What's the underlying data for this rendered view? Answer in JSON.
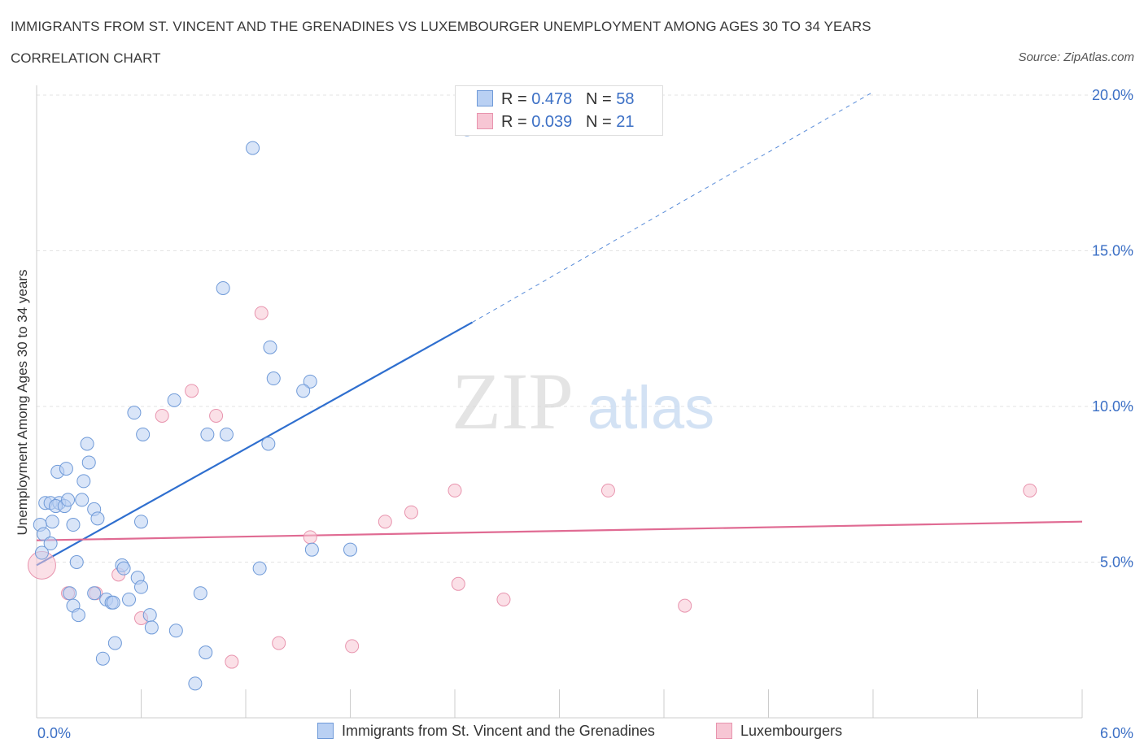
{
  "header": {
    "title": "IMMIGRANTS FROM ST. VINCENT AND THE GRENADINES VS LUXEMBOURGER UNEMPLOYMENT AMONG AGES 30 TO 34 YEARS",
    "subtitle": "CORRELATION CHART",
    "source": "Source: ZipAtlas.com"
  },
  "watermark": {
    "zip": "ZIP",
    "atlas": "atlas"
  },
  "legend": {
    "rows": [
      {
        "r_label": "R =",
        "r_value": "0.478",
        "n_label": "N =",
        "n_value": "58"
      },
      {
        "r_label": "R =",
        "r_value": "0.039",
        "n_label": "N =",
        "n_value": "21"
      }
    ]
  },
  "chart_data": {
    "type": "scatter",
    "title": "IMMIGRANTS FROM ST. VINCENT AND THE GRENADINES VS LUXEMBOURGER UNEMPLOYMENT AMONG AGES 30 TO 34 YEARS",
    "xlabel": "",
    "ylabel": "Unemployment Among Ages 30 to 34 years",
    "xlim": [
      0,
      6
    ],
    "ylim": [
      0,
      20
    ],
    "x_tick_labels": [
      "0.0%",
      "6.0%"
    ],
    "y_ticks": [
      5,
      10,
      15,
      20
    ],
    "y_tick_labels": [
      "5.0%",
      "10.0%",
      "15.0%",
      "20.0%"
    ],
    "grid": true,
    "legend_position": "bottom",
    "colors": {
      "series1_fill": "#b9d0f3",
      "series1_stroke": "#6f9ad8",
      "series1_line": "#2f6fcf",
      "series2_fill": "#f7c6d4",
      "series2_stroke": "#e894ae",
      "series2_line": "#e06b93",
      "tick_text": "#3b6fc5"
    },
    "series": [
      {
        "name": "Immigrants from St. Vincent and the Grenadines",
        "r": 0.478,
        "n": 58,
        "trend": {
          "x": [
            0,
            2.5
          ],
          "y": [
            4.9,
            12.7
          ],
          "dashed_to": [
            4.8,
            20.1
          ]
        },
        "points": [
          [
            2.47,
            18.9
          ],
          [
            1.24,
            18.3
          ],
          [
            1.07,
            13.8
          ],
          [
            1.34,
            11.9
          ],
          [
            1.36,
            10.9
          ],
          [
            1.57,
            10.8
          ],
          [
            1.53,
            10.5
          ],
          [
            0.79,
            10.2
          ],
          [
            0.56,
            9.8
          ],
          [
            0.61,
            9.1
          ],
          [
            0.98,
            9.1
          ],
          [
            1.09,
            9.1
          ],
          [
            1.33,
            8.8
          ],
          [
            0.29,
            8.8
          ],
          [
            0.3,
            8.2
          ],
          [
            0.12,
            7.9
          ],
          [
            0.17,
            8.0
          ],
          [
            0.27,
            7.6
          ],
          [
            0.05,
            6.9
          ],
          [
            0.08,
            6.9
          ],
          [
            0.13,
            6.9
          ],
          [
            0.11,
            6.8
          ],
          [
            0.16,
            6.8
          ],
          [
            0.18,
            7.0
          ],
          [
            0.26,
            7.0
          ],
          [
            0.33,
            6.7
          ],
          [
            0.35,
            6.4
          ],
          [
            0.09,
            6.3
          ],
          [
            0.21,
            6.2
          ],
          [
            0.02,
            6.2
          ],
          [
            0.04,
            5.9
          ],
          [
            0.6,
            6.3
          ],
          [
            0.08,
            5.6
          ],
          [
            0.03,
            5.3
          ],
          [
            0.23,
            5.0
          ],
          [
            1.8,
            5.4
          ],
          [
            1.58,
            5.4
          ],
          [
            0.49,
            4.9
          ],
          [
            0.5,
            4.8
          ],
          [
            1.28,
            4.8
          ],
          [
            0.58,
            4.5
          ],
          [
            0.6,
            4.2
          ],
          [
            0.19,
            4.0
          ],
          [
            0.33,
            4.0
          ],
          [
            0.21,
            3.6
          ],
          [
            0.24,
            3.3
          ],
          [
            0.4,
            3.8
          ],
          [
            0.43,
            3.7
          ],
          [
            0.53,
            3.8
          ],
          [
            0.44,
            3.7
          ],
          [
            0.65,
            3.3
          ],
          [
            0.66,
            2.9
          ],
          [
            0.8,
            2.8
          ],
          [
            0.94,
            4.0
          ],
          [
            0.45,
            2.4
          ],
          [
            0.38,
            1.9
          ],
          [
            0.97,
            2.1
          ],
          [
            0.91,
            1.1
          ]
        ]
      },
      {
        "name": "Luxembourgers",
        "r": 0.039,
        "n": 21,
        "trend": {
          "x": [
            0,
            6
          ],
          "y": [
            5.7,
            6.3
          ]
        },
        "points": [
          [
            0.03,
            4.9
          ],
          [
            1.29,
            13.0
          ],
          [
            0.89,
            10.5
          ],
          [
            0.72,
            9.7
          ],
          [
            1.03,
            9.7
          ],
          [
            2.4,
            7.3
          ],
          [
            3.28,
            7.3
          ],
          [
            5.7,
            7.3
          ],
          [
            2.15,
            6.6
          ],
          [
            2.0,
            6.3
          ],
          [
            1.57,
            5.8
          ],
          [
            0.18,
            4.0
          ],
          [
            0.34,
            4.0
          ],
          [
            0.47,
            4.6
          ],
          [
            0.6,
            3.2
          ],
          [
            2.42,
            4.3
          ],
          [
            2.68,
            3.8
          ],
          [
            3.72,
            3.6
          ],
          [
            1.39,
            2.4
          ],
          [
            1.81,
            2.3
          ],
          [
            1.12,
            1.8
          ]
        ]
      }
    ]
  }
}
